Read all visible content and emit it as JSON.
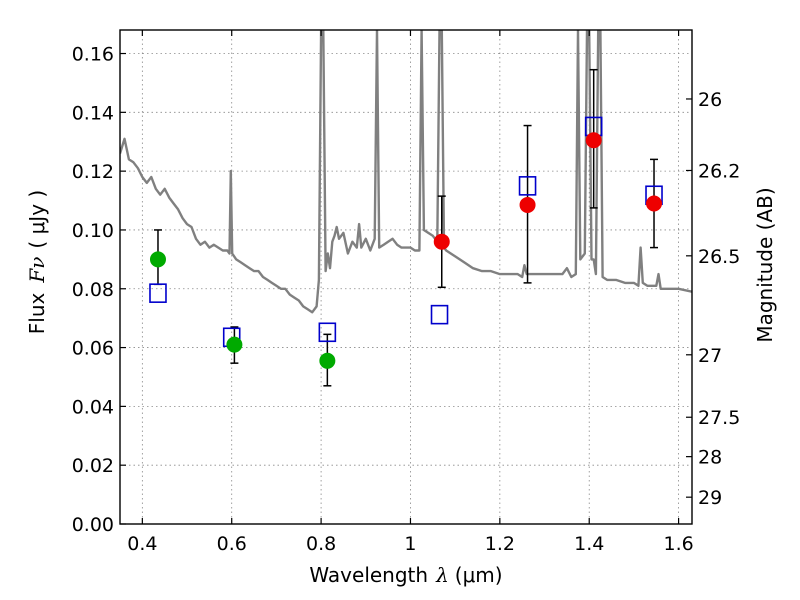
{
  "chart_data": {
    "type": "scatter",
    "title": "",
    "xlabel": "Wavelength",
    "xlabel_symbol": "λ",
    "xlabel_unit": "(μm)",
    "ylabel": "Flux",
    "ylabel_symbol": "Fν",
    "ylabel_unit": "( μJy )",
    "y2label": "Magnitude (AB)",
    "xlim": [
      0.35,
      1.63
    ],
    "ylim": [
      0.0,
      0.168
    ],
    "grid": true,
    "x_ticks": [
      {
        "value": 0.4,
        "label": "0.4"
      },
      {
        "value": 0.6,
        "label": "0.6"
      },
      {
        "value": 0.8,
        "label": "0.8"
      },
      {
        "value": 1.0,
        "label": "1"
      },
      {
        "value": 1.2,
        "label": "1.2"
      },
      {
        "value": 1.4,
        "label": "1.4"
      },
      {
        "value": 1.6,
        "label": "1.6"
      }
    ],
    "y_ticks": [
      {
        "value": 0.0,
        "label": "0.00"
      },
      {
        "value": 0.02,
        "label": "0.02"
      },
      {
        "value": 0.04,
        "label": "0.04"
      },
      {
        "value": 0.06,
        "label": "0.06"
      },
      {
        "value": 0.08,
        "label": "0.08"
      },
      {
        "value": 0.1,
        "label": "0.10"
      },
      {
        "value": 0.12,
        "label": "0.12"
      },
      {
        "value": 0.14,
        "label": "0.14"
      },
      {
        "value": 0.16,
        "label": "0.16"
      }
    ],
    "y2_ticks": [
      {
        "value": 26,
        "label": "26"
      },
      {
        "value": 26.2,
        "label": "26.2"
      },
      {
        "value": 26.5,
        "label": "26.5"
      },
      {
        "value": 27,
        "label": "27"
      },
      {
        "value": 27.5,
        "label": "27.5"
      },
      {
        "value": 28,
        "label": "28"
      },
      {
        "value": 29,
        "label": "29"
      }
    ],
    "colors": {
      "model_spectrum": "#808080",
      "observed_green": "#00aa00",
      "observed_red": "#ee0000",
      "model_photometry": "#0000cc",
      "error_bar": "#000000"
    },
    "series": [
      {
        "kind": "model-spectrum-line",
        "points": [
          [
            0.35,
            0.126
          ],
          [
            0.36,
            0.131
          ],
          [
            0.37,
            0.124
          ],
          [
            0.38,
            0.123
          ],
          [
            0.39,
            0.121
          ],
          [
            0.4,
            0.118
          ],
          [
            0.41,
            0.116
          ],
          [
            0.42,
            0.118
          ],
          [
            0.43,
            0.114
          ],
          [
            0.44,
            0.112
          ],
          [
            0.45,
            0.114
          ],
          [
            0.46,
            0.111
          ],
          [
            0.47,
            0.109
          ],
          [
            0.48,
            0.107
          ],
          [
            0.49,
            0.104
          ],
          [
            0.5,
            0.102
          ],
          [
            0.51,
            0.101
          ],
          [
            0.52,
            0.097
          ],
          [
            0.53,
            0.095
          ],
          [
            0.54,
            0.096
          ],
          [
            0.55,
            0.094
          ],
          [
            0.56,
            0.095
          ],
          [
            0.57,
            0.094
          ],
          [
            0.58,
            0.093
          ],
          [
            0.59,
            0.093
          ],
          [
            0.595,
            0.092
          ],
          [
            0.598,
            0.12
          ],
          [
            0.601,
            0.092
          ],
          [
            0.61,
            0.09
          ],
          [
            0.62,
            0.089
          ],
          [
            0.63,
            0.088
          ],
          [
            0.64,
            0.087
          ],
          [
            0.65,
            0.086
          ],
          [
            0.66,
            0.086
          ],
          [
            0.67,
            0.084
          ],
          [
            0.68,
            0.083
          ],
          [
            0.69,
            0.082
          ],
          [
            0.7,
            0.081
          ],
          [
            0.71,
            0.08
          ],
          [
            0.72,
            0.08
          ],
          [
            0.73,
            0.078
          ],
          [
            0.74,
            0.077
          ],
          [
            0.75,
            0.076
          ],
          [
            0.76,
            0.074
          ],
          [
            0.77,
            0.073
          ],
          [
            0.78,
            0.072
          ],
          [
            0.79,
            0.074
          ],
          [
            0.795,
            0.083
          ],
          [
            0.8,
            0.168
          ],
          [
            0.805,
            0.168
          ],
          [
            0.81,
            0.086
          ],
          [
            0.815,
            0.092
          ],
          [
            0.82,
            0.087
          ],
          [
            0.825,
            0.096
          ],
          [
            0.83,
            0.098
          ],
          [
            0.835,
            0.101
          ],
          [
            0.84,
            0.097
          ],
          [
            0.85,
            0.099
          ],
          [
            0.86,
            0.092
          ],
          [
            0.87,
            0.096
          ],
          [
            0.88,
            0.094
          ],
          [
            0.885,
            0.102
          ],
          [
            0.89,
            0.094
          ],
          [
            0.9,
            0.097
          ],
          [
            0.91,
            0.093
          ],
          [
            0.92,
            0.097
          ],
          [
            0.925,
            0.168
          ],
          [
            0.93,
            0.094
          ],
          [
            0.94,
            0.095
          ],
          [
            0.95,
            0.096
          ],
          [
            0.96,
            0.097
          ],
          [
            0.97,
            0.095
          ],
          [
            0.98,
            0.094
          ],
          [
            0.99,
            0.094
          ],
          [
            1.0,
            0.094
          ],
          [
            1.01,
            0.093
          ],
          [
            1.02,
            0.093
          ],
          [
            1.025,
            0.168
          ],
          [
            1.03,
            0.1
          ],
          [
            1.04,
            0.099
          ],
          [
            1.05,
            0.098
          ],
          [
            1.06,
            0.096
          ],
          [
            1.065,
            0.168
          ],
          [
            1.07,
            0.168
          ],
          [
            1.075,
            0.094
          ],
          [
            1.08,
            0.093
          ],
          [
            1.1,
            0.091
          ],
          [
            1.12,
            0.089
          ],
          [
            1.14,
            0.087
          ],
          [
            1.16,
            0.086
          ],
          [
            1.18,
            0.086
          ],
          [
            1.2,
            0.085
          ],
          [
            1.22,
            0.085
          ],
          [
            1.24,
            0.085
          ],
          [
            1.25,
            0.084
          ],
          [
            1.255,
            0.088
          ],
          [
            1.26,
            0.085
          ],
          [
            1.28,
            0.085
          ],
          [
            1.3,
            0.085
          ],
          [
            1.32,
            0.085
          ],
          [
            1.34,
            0.085
          ],
          [
            1.35,
            0.087
          ],
          [
            1.36,
            0.084
          ],
          [
            1.37,
            0.085
          ],
          [
            1.375,
            0.168
          ],
          [
            1.38,
            0.09
          ],
          [
            1.39,
            0.092
          ],
          [
            1.395,
            0.168
          ],
          [
            1.4,
            0.168
          ],
          [
            1.405,
            0.09
          ],
          [
            1.41,
            0.09
          ],
          [
            1.415,
            0.085
          ],
          [
            1.42,
            0.168
          ],
          [
            1.425,
            0.168
          ],
          [
            1.43,
            0.084
          ],
          [
            1.44,
            0.083
          ],
          [
            1.46,
            0.083
          ],
          [
            1.48,
            0.082
          ],
          [
            1.5,
            0.082
          ],
          [
            1.51,
            0.081
          ],
          [
            1.515,
            0.094
          ],
          [
            1.52,
            0.082
          ],
          [
            1.53,
            0.081
          ],
          [
            1.54,
            0.081
          ],
          [
            1.55,
            0.081
          ],
          [
            1.555,
            0.085
          ],
          [
            1.56,
            0.08
          ],
          [
            1.58,
            0.08
          ],
          [
            1.6,
            0.08
          ],
          [
            1.63,
            0.079
          ]
        ]
      },
      {
        "kind": "observed-flux-green",
        "points": [
          {
            "x": 0.435,
            "y": 0.09,
            "err_low": 0.0085,
            "err_high": 0.01
          },
          {
            "x": 0.606,
            "y": 0.061,
            "err_low": 0.0063,
            "err_high": 0.006
          },
          {
            "x": 0.814,
            "y": 0.0555,
            "err_low": 0.0085,
            "err_high": 0.009
          }
        ]
      },
      {
        "kind": "observed-flux-red",
        "points": [
          {
            "x": 1.07,
            "y": 0.096,
            "err_low": 0.0155,
            "err_high": 0.0155
          },
          {
            "x": 1.262,
            "y": 0.1085,
            "err_low": 0.0265,
            "err_high": 0.027
          },
          {
            "x": 1.41,
            "y": 0.1305,
            "err_low": 0.023,
            "err_high": 0.024
          },
          {
            "x": 1.545,
            "y": 0.109,
            "err_low": 0.015,
            "err_high": 0.015
          }
        ]
      },
      {
        "kind": "model-photometry-squares",
        "points": [
          {
            "x": 0.435,
            "y": 0.0785
          },
          {
            "x": 0.6,
            "y": 0.0635
          },
          {
            "x": 0.814,
            "y": 0.0652
          },
          {
            "x": 1.065,
            "y": 0.0712
          },
          {
            "x": 1.262,
            "y": 0.115
          },
          {
            "x": 1.41,
            "y": 0.1352
          },
          {
            "x": 1.545,
            "y": 0.1118
          }
        ]
      }
    ]
  }
}
